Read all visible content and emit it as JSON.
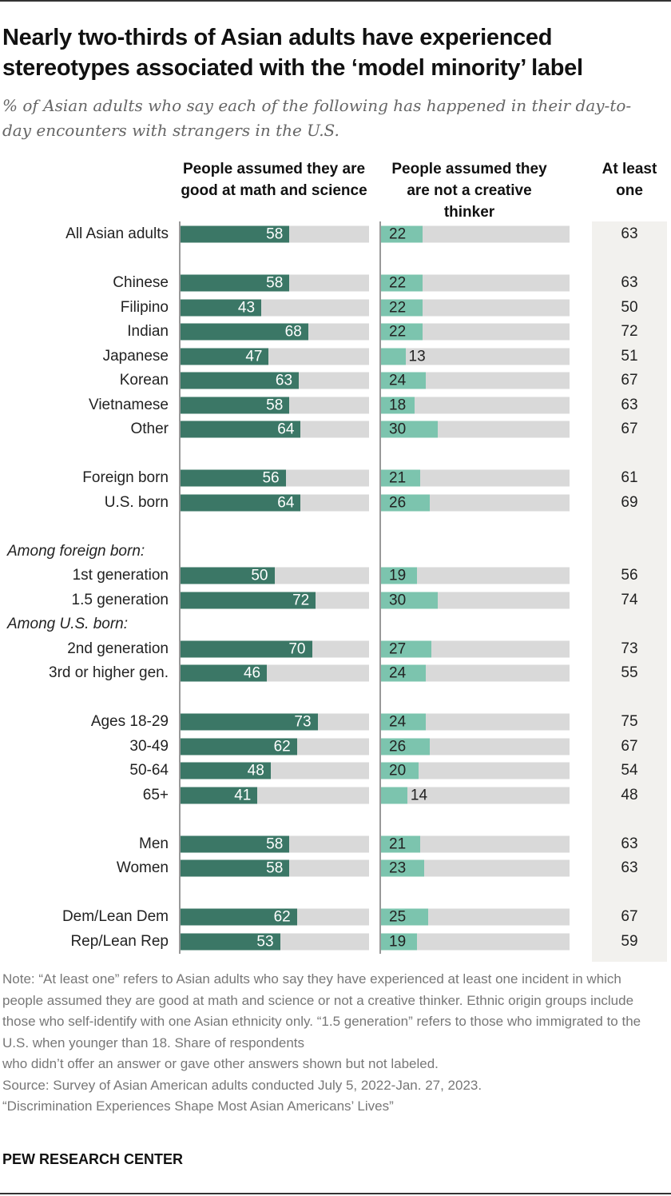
{
  "title": "Nearly two-thirds of Asian adults have experienced stereotypes associated with the ‘model minority’ label",
  "subtitle": "% of Asian adults who say each of the following has happened in their day-to-day encounters with strangers in the U.S.",
  "colors": {
    "math": "#3b7766",
    "creative": "#7cc4ae",
    "track": "#d9d9d9",
    "alo_bg": "#f2f1ee"
  },
  "chart_data": {
    "type": "bar",
    "series": [
      {
        "name": "People assumed they are good at math and science"
      },
      {
        "name": "People assumed they are not a creative thinker"
      },
      {
        "name": "At least one"
      }
    ],
    "xlim": [
      0,
      100
    ],
    "rows": [
      {
        "label": "All Asian adults",
        "math": 58,
        "creative": 22,
        "alo": 63
      },
      {
        "gap": true
      },
      {
        "label": "Chinese",
        "math": 58,
        "creative": 22,
        "alo": 63
      },
      {
        "label": "Filipino",
        "math": 43,
        "creative": 22,
        "alo": 50
      },
      {
        "label": "Indian",
        "math": 68,
        "creative": 22,
        "alo": 72
      },
      {
        "label": "Japanese",
        "math": 47,
        "creative": 13,
        "alo": 51
      },
      {
        "label": "Korean",
        "math": 63,
        "creative": 24,
        "alo": 67
      },
      {
        "label": "Vietnamese",
        "math": 58,
        "creative": 18,
        "alo": 63
      },
      {
        "label": "Other",
        "math": 64,
        "creative": 30,
        "alo": 67
      },
      {
        "gap": true
      },
      {
        "label": "Foreign born",
        "math": 56,
        "creative": 21,
        "alo": 61
      },
      {
        "label": "U.S. born",
        "math": 64,
        "creative": 26,
        "alo": 69
      },
      {
        "gap": true
      },
      {
        "subhead": "Among foreign born:"
      },
      {
        "label": "1st generation",
        "math": 50,
        "creative": 19,
        "alo": 56
      },
      {
        "label": "1.5 generation",
        "math": 72,
        "creative": 30,
        "alo": 74
      },
      {
        "subhead": "Among U.S. born:"
      },
      {
        "label": "2nd generation",
        "math": 70,
        "creative": 27,
        "alo": 73
      },
      {
        "label": "3rd or higher gen.",
        "math": 46,
        "creative": 24,
        "alo": 55
      },
      {
        "gap": true
      },
      {
        "label": "Ages 18-29",
        "math": 73,
        "creative": 24,
        "alo": 75
      },
      {
        "label": "30-49",
        "math": 62,
        "creative": 26,
        "alo": 67
      },
      {
        "label": "50-64",
        "math": 48,
        "creative": 20,
        "alo": 54
      },
      {
        "label": "65+",
        "math": 41,
        "creative": 14,
        "alo": 48
      },
      {
        "gap": true
      },
      {
        "label": "Men",
        "math": 58,
        "creative": 21,
        "alo": 63
      },
      {
        "label": "Women",
        "math": 58,
        "creative": 23,
        "alo": 63
      },
      {
        "gap": true
      },
      {
        "label": "Dem/Lean Dem",
        "math": 62,
        "creative": 25,
        "alo": 67
      },
      {
        "label": "Rep/Lean Rep",
        "math": 53,
        "creative": 19,
        "alo": 59
      }
    ]
  },
  "note": "Note: “At least one” refers to Asian adults who say they have experienced at least one incident in which people assumed they are good at math and science or not a creative thinker. Ethnic origin groups include those who self-identify with one Asian ethnicity only. “1.5 generation” refers to those who immigrated to the U.S. when younger than 18. Share of respondents\nwho didn’t offer an answer or gave other answers shown but not labeled.\nSource: Survey of Asian American adults conducted July 5, 2022-Jan. 27, 2023.\n“Discrimination Experiences Shape Most Asian Americans’ Lives”",
  "brand": "PEW RESEARCH CENTER"
}
